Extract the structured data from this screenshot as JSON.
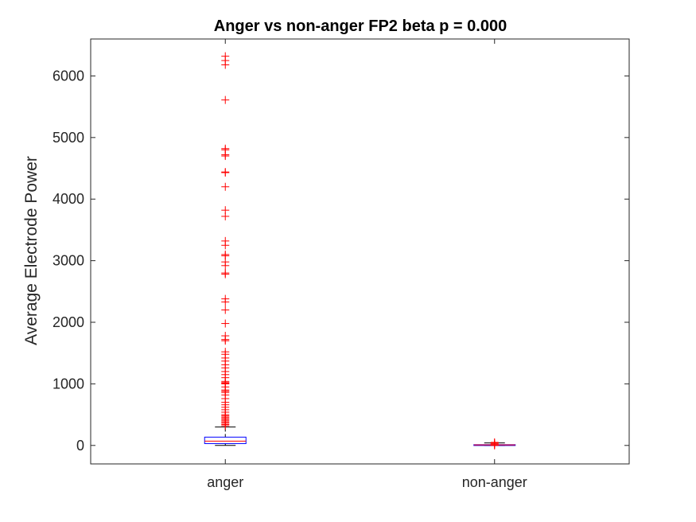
{
  "chart_data": {
    "type": "boxplot",
    "title": "Anger vs non-anger FP2 beta p = 0.000",
    "xlabel": "",
    "ylabel": "Average Electrode Power",
    "ylim": [
      -300,
      6600
    ],
    "yticks": [
      0,
      1000,
      2000,
      3000,
      4000,
      5000,
      6000
    ],
    "grid": false,
    "categories": [
      "anger",
      "non-anger"
    ],
    "boxes": [
      {
        "name": "anger",
        "q1": 30,
        "median": 70,
        "q3": 135,
        "whisker_low": 0,
        "whisker_high": 300,
        "outliers": [
          320,
          340,
          360,
          380,
          400,
          420,
          440,
          460,
          480,
          500,
          540,
          580,
          620,
          660,
          700,
          760,
          820,
          860,
          880,
          900,
          950,
          1000,
          1010,
          1020,
          1040,
          1100,
          1150,
          1200,
          1260,
          1310,
          1370,
          1420,
          1480,
          1520,
          1700,
          1720,
          1780,
          1980,
          2200,
          2330,
          2380,
          2780,
          2800,
          2920,
          2980,
          3080,
          3100,
          3250,
          3320,
          3720,
          3820,
          4200,
          4430,
          4440,
          4700,
          4720,
          4800,
          4820,
          5610,
          6180,
          6250,
          6320
        ]
      },
      {
        "name": "non-anger",
        "q1": 4,
        "median": 8,
        "q3": 12,
        "whisker_low": 0,
        "whisker_high": 40,
        "outliers": [
          0,
          10,
          25,
          40,
          50
        ]
      }
    ],
    "colors": {
      "box": "#0000ff",
      "median": "#ff0000",
      "whisker": "#000000",
      "outlier": "#ff0000",
      "axis": "#262626"
    }
  }
}
